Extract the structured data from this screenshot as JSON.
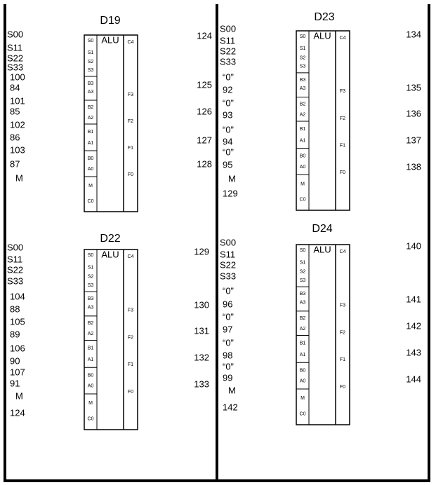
{
  "blocks": [
    {
      "title": "D19",
      "alu": "ALU",
      "left_pins": [
        "S0",
        "S1",
        "S2",
        "S3",
        "B3",
        "A3",
        "B2",
        "A2",
        "B1",
        "A1",
        "B0",
        "A0",
        "M",
        "C0"
      ],
      "right_pins": [
        "C4",
        "F3",
        "F2",
        "F1",
        "F0"
      ],
      "inputs": [
        "S00",
        "S11",
        "S22",
        "S33",
        "100",
        "84",
        "101",
        "85",
        "102",
        "86",
        "103",
        "87",
        "M"
      ],
      "outputs": [
        "124",
        "125",
        "126",
        "127",
        "128"
      ]
    },
    {
      "title": "D22",
      "alu": "ALU",
      "left_pins": [
        "S0",
        "S1",
        "S2",
        "S3",
        "B3",
        "A3",
        "B2",
        "A2",
        "B1",
        "A1",
        "B0",
        "A0",
        "M",
        "C0"
      ],
      "right_pins": [
        "C4",
        "F3",
        "F2",
        "F1",
        "F0"
      ],
      "inputs": [
        "S00",
        "S11",
        "S22",
        "S33",
        "104",
        "88",
        "105",
        "89",
        "106",
        "90",
        "107",
        "91",
        "M",
        "124"
      ],
      "outputs": [
        "129",
        "130",
        "131",
        "132",
        "133"
      ]
    },
    {
      "title": "D23",
      "alu": "ALU",
      "left_pins": [
        "S0",
        "S1",
        "S2",
        "S3",
        "B3",
        "A3",
        "B2",
        "A2",
        "B1",
        "A1",
        "B0",
        "A0",
        "M",
        "C0"
      ],
      "right_pins": [
        "C4",
        "F3",
        "F2",
        "F1",
        "F0"
      ],
      "inputs": [
        "S00",
        "S11",
        "S22",
        "S33",
        "“0”",
        "92",
        "“0”",
        "93",
        "“0”",
        "94",
        "“0”",
        "95",
        "M",
        "129"
      ],
      "outputs": [
        "134",
        "135",
        "136",
        "137",
        "138"
      ]
    },
    {
      "title": "D24",
      "alu": "ALU",
      "left_pins": [
        "S0",
        "S1",
        "S2",
        "S3",
        "B3",
        "A3",
        "B2",
        "A2",
        "B1",
        "A1",
        "B0",
        "A0",
        "M",
        "C0"
      ],
      "right_pins": [
        "C4",
        "F3",
        "F2",
        "F1",
        "F0"
      ],
      "inputs": [
        "S00",
        "S11",
        "S22",
        "S33",
        "“0”",
        "96",
        "“0”",
        "97",
        "“0”",
        "98",
        "“0”",
        "99",
        "M",
        "142"
      ],
      "outputs": [
        "140",
        "141",
        "142",
        "143",
        "144"
      ]
    }
  ]
}
